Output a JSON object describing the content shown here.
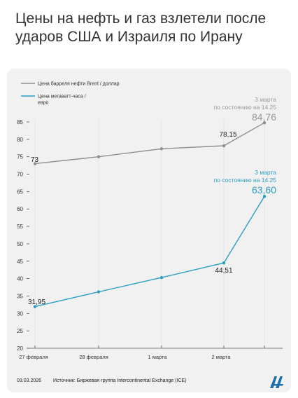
{
  "headline": "Цены на нефть и газ взлетели после ударов США и Израиля по Ирану",
  "footer": {
    "date": "03.03.2026",
    "source": "Источник: Биржевая группа Intercontinental Exchange (ICE)"
  },
  "colors": {
    "brent": "#8f8f8f",
    "gas": "#2b9ec0",
    "card": "#f1f1f1",
    "axis": "#555555"
  },
  "logo_icon": "aa-agency-logo",
  "chart_data": {
    "type": "line",
    "categories": [
      "27 февраля",
      "28 февраля",
      "1 марта",
      "2 марта",
      "3 марта"
    ],
    "ylim": [
      20,
      85
    ],
    "yticks": [
      20,
      25,
      30,
      35,
      40,
      45,
      50,
      55,
      60,
      65,
      70,
      75,
      80,
      85
    ],
    "series": [
      {
        "name": "Цена барреля нефти Brent / доллар",
        "values": [
          73,
          75,
          77.3,
          78.15,
          84.76
        ],
        "labels": [
          "73",
          "",
          "",
          "78,15",
          "84,76"
        ],
        "annotation": [
          "3 марта",
          "по состоянию на 14.25"
        ]
      },
      {
        "name": "Цена мегаватт-часа / евро",
        "values": [
          31.95,
          36.2,
          40.3,
          44.51,
          63.6
        ],
        "labels": [
          "31,95",
          "",
          "",
          "44,51",
          "63,60"
        ],
        "annotation": [
          "3 марта",
          "по состоянию на 14.25"
        ]
      }
    ]
  }
}
